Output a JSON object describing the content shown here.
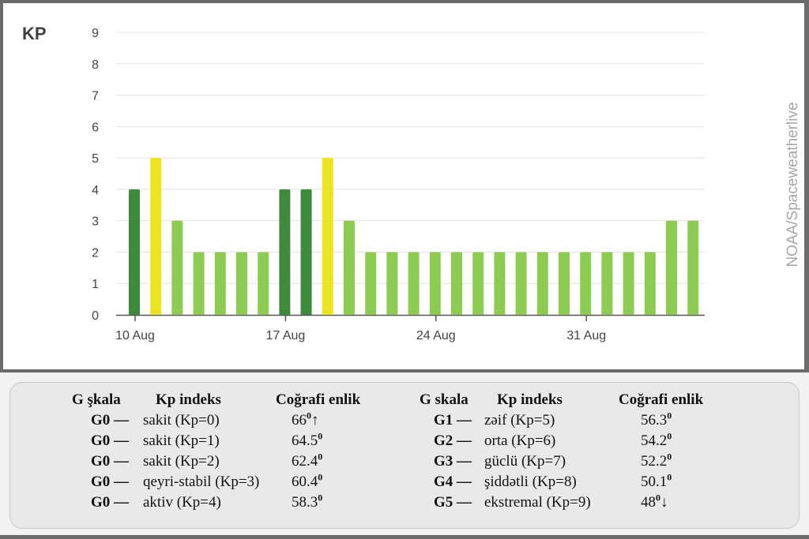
{
  "chart_data": {
    "type": "bar",
    "ylabel": "KP",
    "ylim": [
      0,
      9
    ],
    "yticks": [
      "0",
      "1",
      "2",
      "3",
      "4",
      "5",
      "6",
      "7",
      "8",
      "9"
    ],
    "xticks": [
      "10 Aug",
      "17 Aug",
      "24 Aug",
      "31 Aug"
    ],
    "x_start_day": 10,
    "values": [
      4,
      5,
      3,
      2,
      2,
      2,
      2,
      4,
      4,
      5,
      3,
      2,
      2,
      2,
      2,
      2,
      2,
      2,
      2,
      2,
      2,
      2,
      2,
      2,
      2,
      3,
      3
    ],
    "colors": {
      "4": "#3f8a3c",
      "5": "#ece423",
      "3": "#8dcb53",
      "2": "#8dcb53"
    },
    "grid": true,
    "source": "NOAA/Spaceweatherlive"
  },
  "legend": {
    "headers_left": {
      "scale": "G şkala",
      "kp": "Kp indeks",
      "lat": "Coğrafi enlik"
    },
    "headers_right": {
      "scale": "G skala",
      "kp": "Kp indeks",
      "lat": "Coğrafi enlik"
    },
    "rows_left": [
      {
        "code": "G0 —",
        "desc": "sakit (Kp=0)",
        "lat": "66",
        "sup": "0",
        "arrow": "↑"
      },
      {
        "code": "G0 —",
        "desc": "sakit (Kp=1)",
        "lat": "64.5",
        "sup": "0",
        "arrow": ""
      },
      {
        "code": "G0 —",
        "desc": "sakit (Kp=2)",
        "lat": "62.4",
        "sup": "0",
        "arrow": ""
      },
      {
        "code": "G0 —",
        "desc": "qeyri-stabil (Kp=3)",
        "lat": "60.4",
        "sup": "0",
        "arrow": ""
      },
      {
        "code": "G0 —",
        "desc": "aktiv (Kp=4)",
        "lat": "58.3",
        "sup": "0",
        "arrow": ""
      }
    ],
    "rows_right": [
      {
        "code": "G1 —",
        "desc": "zəif (Kp=5)",
        "lat": "56.3",
        "sup": "0",
        "arrow": ""
      },
      {
        "code": "G2 —",
        "desc": "orta (Kp=6)",
        "lat": "54.2",
        "sup": "0",
        "arrow": ""
      },
      {
        "code": "G3 —",
        "desc": "güclü (Kp=7)",
        "lat": "52.2",
        "sup": "0",
        "arrow": ""
      },
      {
        "code": "G4 —",
        "desc": "şiddətli (Kp=8)",
        "lat": "50.1",
        "sup": "0",
        "arrow": ""
      },
      {
        "code": "G5 —",
        "desc": "ekstremal (Kp=9)",
        "lat": "48",
        "sup": "0",
        "arrow": "↓"
      }
    ]
  }
}
